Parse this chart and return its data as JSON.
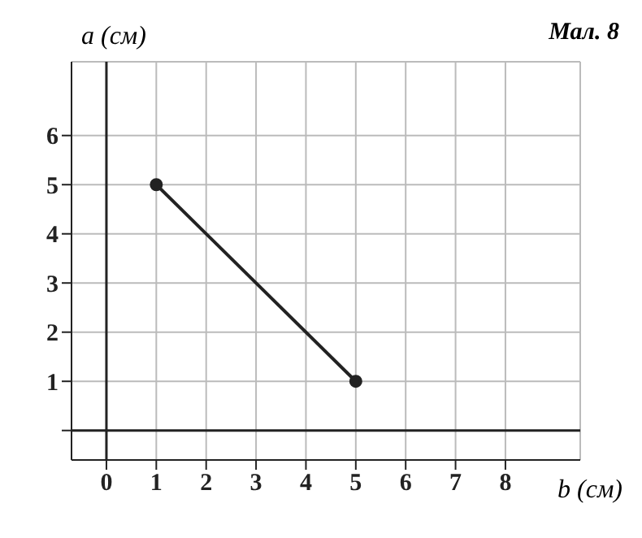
{
  "chart_data": {
    "type": "line",
    "xlabel": "b (см)",
    "ylabel": "a (см)",
    "annotations": [
      "Мал. 8"
    ],
    "x": [
      1,
      5
    ],
    "series": [
      {
        "color": "#222222",
        "values": [
          5,
          1
        ]
      }
    ],
    "xlim": [
      -0.7,
      9.5
    ],
    "ylim": [
      -0.6,
      7.5
    ],
    "xticks": [
      0,
      1,
      2,
      3,
      4,
      5,
      6,
      7,
      8
    ],
    "yticks": [
      {
        "value": 0,
        "label": null
      },
      1,
      2,
      3,
      4,
      5,
      6
    ],
    "grid": true,
    "marker": "circle",
    "line_style": "solid"
  }
}
